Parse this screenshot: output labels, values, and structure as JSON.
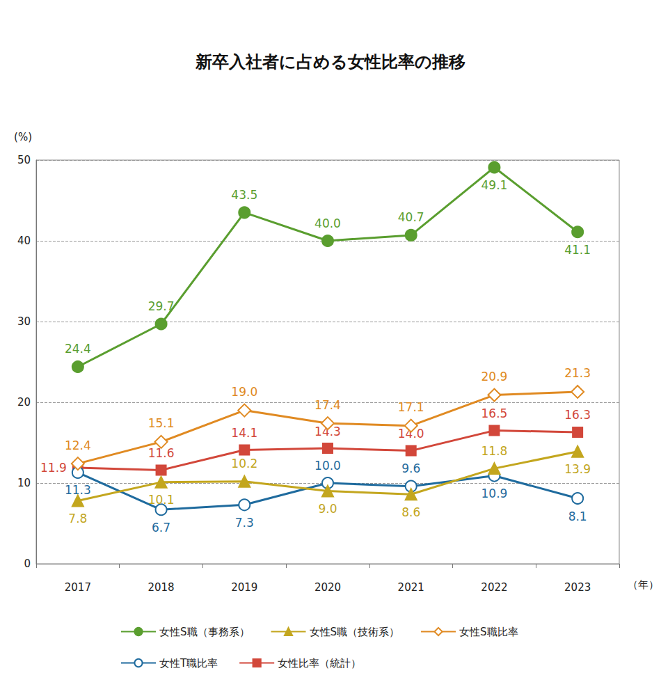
{
  "chart_data": {
    "type": "line",
    "title": "新卒入社者に占める女性比率の推移",
    "y_label": "(%)",
    "x_label": "（年）",
    "categories": [
      "2017",
      "2018",
      "2019",
      "2020",
      "2021",
      "2022",
      "2023"
    ],
    "ylim": [
      0,
      50
    ],
    "yticks": [
      0,
      10,
      20,
      30,
      40,
      50
    ],
    "grid": true,
    "data_labels": true,
    "legend": "bottom",
    "series": [
      {
        "name": "女性S職（事務系）",
        "color": "#5a9e2f",
        "marker": "circle",
        "values": [
          24.4,
          29.7,
          43.5,
          40.0,
          40.7,
          49.1,
          41.1
        ],
        "value_labels": [
          "24.4",
          "29.7",
          "43.5",
          "40.0",
          "40.7",
          "49.1",
          "41.1"
        ]
      },
      {
        "name": "女性S職（技術系）",
        "color": "#c3a61e",
        "marker": "triangle",
        "values": [
          7.8,
          10.1,
          10.2,
          9.0,
          8.6,
          11.8,
          13.9
        ],
        "value_labels": [
          "7.8",
          "10.1",
          "10.2",
          "9.0",
          "8.6",
          "11.8",
          "13.9"
        ]
      },
      {
        "name": "女性S職比率",
        "color": "#e08a22",
        "marker": "emptyDiamond",
        "values": [
          12.4,
          15.1,
          19.0,
          17.4,
          17.1,
          20.9,
          21.3
        ],
        "value_labels": [
          "12.4",
          "15.1",
          "19.0",
          "17.4",
          "17.1",
          "20.9",
          "21.3"
        ]
      },
      {
        "name": "女性T職比率",
        "color": "#1f6b9e",
        "marker": "emptyCircle",
        "values": [
          11.3,
          6.7,
          7.3,
          10.0,
          9.6,
          10.9,
          8.1
        ],
        "value_labels": [
          "11.3",
          "6.7",
          "7.3",
          "10.0",
          "9.6",
          "10.9",
          "8.1"
        ]
      },
      {
        "name": "女性比率（統計）",
        "color": "#d2473a",
        "marker": "rect",
        "values": [
          11.9,
          11.6,
          14.1,
          14.3,
          14.0,
          16.5,
          16.3
        ],
        "value_labels": [
          "11.9",
          "11.6",
          "14.1",
          "14.3",
          "14.0",
          "16.5",
          "16.3"
        ]
      }
    ]
  }
}
